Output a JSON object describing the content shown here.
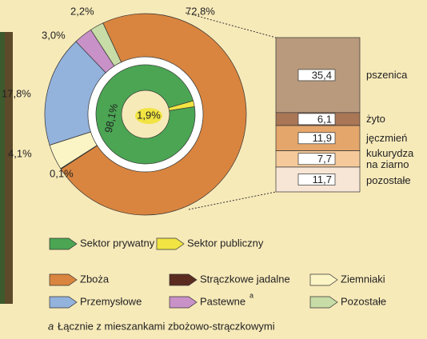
{
  "chart_data": [
    {
      "type": "donut",
      "categories": [
        "Zboża",
        "Strączkowe jadalne",
        "Ziemniaki",
        "Przemysłowe",
        "Pastewne",
        "Pozostałe"
      ],
      "values": [
        72.8,
        0.1,
        4.1,
        17.8,
        3.0,
        2.2
      ],
      "value_labels": [
        "72,8%",
        "0,1%",
        "4,1%",
        "17,8%",
        "3,0%",
        "2,2%"
      ],
      "colors": [
        "#d9853f",
        "#5b2b20",
        "#fbf4c4",
        "#93b2dc",
        "#c891c7",
        "#c7dca6"
      ]
    },
    {
      "type": "donut",
      "categories": [
        "Sektor prywatny",
        "Sektor publiczny"
      ],
      "values": [
        98.1,
        1.9
      ],
      "value_labels": [
        "98,1%",
        "1,9%"
      ],
      "colors": [
        "#4ba553",
        "#f1e443"
      ]
    },
    {
      "type": "stacked_bar",
      "categories": [
        "pszenica",
        "żyto",
        "jęczmień",
        "kukurydza na ziarno",
        "pozostałe"
      ],
      "values": [
        35.4,
        6.1,
        11.9,
        7.7,
        11.7
      ],
      "value_labels": [
        "35,4",
        "6,1",
        "11,9",
        "7,7",
        "11,7"
      ],
      "colors": [
        "#b99a7d",
        "#a97656",
        "#e4a66b",
        "#f5c99a",
        "#f7e5d5"
      ]
    }
  ],
  "footnote": {
    "marker": "a",
    "text": "Łącznie z mieszankami zbożowo-strączkowymi"
  }
}
